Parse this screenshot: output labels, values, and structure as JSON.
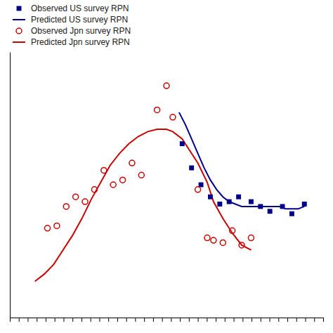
{
  "chart_data": {
    "type": "line",
    "series": [
      {
        "name": "Observed US survey RPN",
        "type": "scatter",
        "marker": "square",
        "color": "#00008B",
        "x": [
          55,
          58,
          61,
          64,
          67,
          70,
          73,
          77,
          80,
          83,
          87,
          90,
          94
        ],
        "values": [
          0.72,
          0.62,
          0.55,
          0.5,
          0.47,
          0.48,
          0.5,
          0.48,
          0.46,
          0.44,
          0.46,
          0.43,
          0.47
        ]
      },
      {
        "name": "Predicted US survey RPN",
        "type": "line",
        "color": "#00008B",
        "x": [
          54,
          56,
          58,
          60,
          62,
          64,
          66,
          68,
          70,
          72,
          74,
          76,
          78,
          80,
          82,
          84,
          86,
          88,
          90,
          92,
          94
        ],
        "values": [
          0.85,
          0.8,
          0.74,
          0.68,
          0.62,
          0.57,
          0.53,
          0.5,
          0.48,
          0.47,
          0.46,
          0.46,
          0.46,
          0.46,
          0.46,
          0.46,
          0.46,
          0.45,
          0.45,
          0.45,
          0.46
        ]
      },
      {
        "name": "Observed Jpn survey RPN",
        "type": "scatter",
        "marker": "circle",
        "color": "#CC0000",
        "x": [
          12,
          15,
          18,
          21,
          24,
          27,
          30,
          33,
          36,
          39,
          42,
          47,
          50,
          52,
          60,
          63,
          65,
          68,
          71,
          74,
          77
        ],
        "values": [
          0.37,
          0.38,
          0.46,
          0.5,
          0.48,
          0.53,
          0.61,
          0.55,
          0.57,
          0.64,
          0.59,
          0.86,
          0.96,
          0.83,
          0.53,
          0.33,
          0.32,
          0.31,
          0.36,
          0.3,
          0.33
        ]
      },
      {
        "name": "Predicted Jpn survey RPN",
        "type": "line",
        "color": "#CC0000",
        "x": [
          8,
          11,
          14,
          17,
          20,
          23,
          26,
          29,
          32,
          35,
          38,
          41,
          44,
          47,
          50,
          52,
          55,
          57,
          60,
          63,
          65,
          68,
          71,
          74,
          77
        ],
        "values": [
          0.15,
          0.18,
          0.22,
          0.28,
          0.34,
          0.41,
          0.49,
          0.56,
          0.63,
          0.68,
          0.72,
          0.75,
          0.77,
          0.78,
          0.78,
          0.77,
          0.74,
          0.7,
          0.64,
          0.56,
          0.48,
          0.41,
          0.35,
          0.3,
          0.28
        ]
      }
    ],
    "xlim": [
      0,
      100
    ],
    "ylim": [
      0.0,
      1.1
    ],
    "xticks": [
      0,
      2.857142857142857,
      5.714285714285714,
      8.571428571428571,
      11.428571428571429,
      14.285714285714286,
      17.142857142857142,
      20,
      22.857142857142858,
      25.714285714285715,
      28.571428571428573,
      31.428571428571427,
      34.285714285714285,
      37.142857142857146,
      40,
      42.857142857142854,
      45.714285714285715,
      48.57142857142857,
      51.42857142857143,
      54.285714285714285,
      57.142857142857146,
      60,
      62.857142857142854,
      65.71428571428571,
      68.57142857142857,
      71.42857142857143,
      74.28571428571429,
      77.14285714285714,
      80,
      82.85714285714286,
      85.71428571428571,
      88.57142857142857,
      91.42857142857143,
      94.28571428571429,
      97.14285714285714,
      100
    ],
    "yticks": [],
    "tick_labels": false,
    "grid": false,
    "legend": "upper left"
  }
}
